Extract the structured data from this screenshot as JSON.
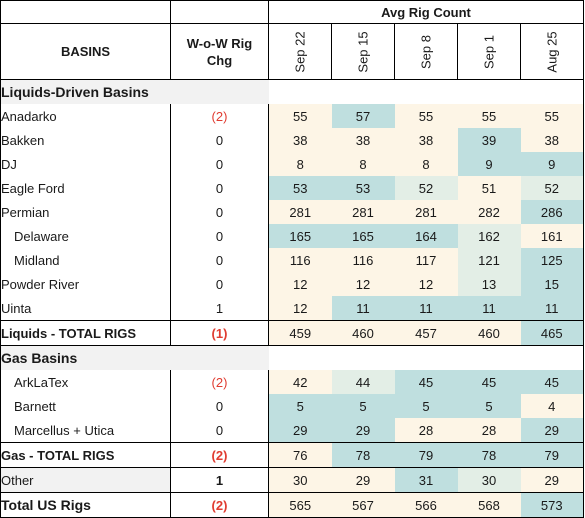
{
  "header": {
    "group_title": "Avg Rig Count",
    "basins_label": "BASINS",
    "wow_label_line1": "W-o-W Rig",
    "wow_label_line2": "Chg",
    "dates": [
      "Sep 22",
      "Sep 15",
      "Sep 8",
      "Sep 1",
      "Aug 25"
    ]
  },
  "sections": {
    "liquids": {
      "title": "Liquids-Driven Basins",
      "rows": [
        {
          "name": "Anadarko",
          "wow": "(2)",
          "values": [
            "55",
            "57",
            "55",
            "55",
            "55"
          ]
        },
        {
          "name": "Bakken",
          "wow": "0",
          "values": [
            "38",
            "38",
            "38",
            "39",
            "38"
          ]
        },
        {
          "name": "DJ",
          "wow": "0",
          "values": [
            "8",
            "8",
            "8",
            "9",
            "9"
          ]
        },
        {
          "name": "Eagle Ford",
          "wow": "0",
          "values": [
            "53",
            "53",
            "52",
            "51",
            "52"
          ]
        },
        {
          "name": "Permian",
          "wow": "0",
          "values": [
            "281",
            "281",
            "281",
            "282",
            "286"
          ]
        },
        {
          "name": "Delaware",
          "wow": "0",
          "values": [
            "165",
            "165",
            "164",
            "162",
            "161"
          ]
        },
        {
          "name": "Midland",
          "wow": "0",
          "values": [
            "116",
            "116",
            "117",
            "121",
            "125"
          ]
        },
        {
          "name": "Powder River",
          "wow": "0",
          "values": [
            "12",
            "12",
            "12",
            "13",
            "15"
          ]
        },
        {
          "name": "Uinta",
          "wow": "1",
          "values": [
            "12",
            "11",
            "11",
            "11",
            "11"
          ]
        }
      ],
      "total": {
        "name": "Liquids - TOTAL RIGS",
        "wow": "(1)",
        "values": [
          "459",
          "460",
          "457",
          "460",
          "465"
        ]
      }
    },
    "gas": {
      "title": "Gas Basins",
      "rows": [
        {
          "name": "ArkLaTex",
          "wow": "(2)",
          "values": [
            "42",
            "44",
            "45",
            "45",
            "45"
          ]
        },
        {
          "name": "Barnett",
          "wow": "0",
          "values": [
            "5",
            "5",
            "5",
            "5",
            "4"
          ]
        },
        {
          "name": "Marcellus + Utica",
          "wow": "0",
          "values": [
            "29",
            "29",
            "28",
            "28",
            "29"
          ]
        }
      ],
      "total": {
        "name": "Gas - TOTAL RIGS",
        "wow": "(2)",
        "values": [
          "76",
          "78",
          "79",
          "78",
          "79"
        ]
      }
    },
    "other": {
      "name": "Other",
      "wow": "1",
      "values": [
        "30",
        "29",
        "31",
        "30",
        "29"
      ]
    },
    "us_total": {
      "name": "Total US Rigs",
      "wow": "(2)",
      "values": [
        "565",
        "567",
        "566",
        "568",
        "573"
      ]
    }
  },
  "colors": {
    "cream": "#fdf5e6",
    "teal": "#bfdfdf",
    "pale": "#e3eee6",
    "negative": "#e03c31",
    "section_bg": "#f2f2f2"
  }
}
